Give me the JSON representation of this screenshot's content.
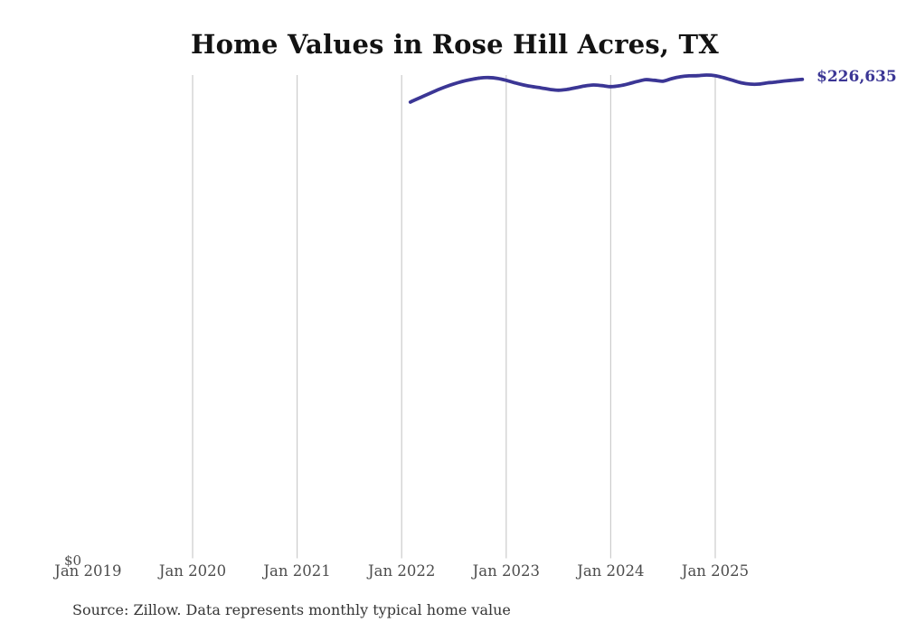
{
  "title": "Home Values in Rose Hill Acres, TX",
  "source_note": "Source: Zillow. Data represents monthly typical home value",
  "colors": {
    "line": "#3b3695",
    "end_label": "#3b3695",
    "gridline": "#cccccc",
    "axis_text": "#4d4d4d",
    "title_text": "#131313",
    "background": "#ffffff"
  },
  "chart_data": {
    "type": "line",
    "title": "Home Values in Rose Hill Acres, TX",
    "series_name": "Monthly typical home value",
    "xlabel": "",
    "ylabel": "",
    "legend_position": "none",
    "grid": "vertical-only",
    "ylim_dollars": [
      0,
      240000
    ],
    "end_label": "$226,635",
    "final_value": 226635,
    "y_axis": {
      "zero_label": "$0",
      "min": 0
    },
    "x_ticks": [
      {
        "label": "Jan 2019",
        "year": 2019,
        "gridline": false
      },
      {
        "label": "Jan 2020",
        "year": 2020,
        "gridline": true
      },
      {
        "label": "Jan 2021",
        "year": 2021,
        "gridline": true
      },
      {
        "label": "Jan 2022",
        "year": 2022,
        "gridline": true
      },
      {
        "label": "Jan 2023",
        "year": 2023,
        "gridline": true
      },
      {
        "label": "Jan 2024",
        "year": 2024,
        "gridline": true
      },
      {
        "label": "Jan 2025",
        "year": 2025,
        "gridline": true
      }
    ],
    "x": [
      "2022-02",
      "2022-03",
      "2022-04",
      "2022-05",
      "2022-06",
      "2022-07",
      "2022-08",
      "2022-09",
      "2022-10",
      "2022-11",
      "2022-12",
      "2023-01",
      "2023-02",
      "2023-03",
      "2023-04",
      "2023-05",
      "2023-06",
      "2023-07",
      "2023-08",
      "2023-09",
      "2023-10",
      "2023-11",
      "2023-12",
      "2024-01",
      "2024-02",
      "2024-03",
      "2024-04",
      "2024-05",
      "2024-06",
      "2024-07",
      "2024-08",
      "2024-09",
      "2024-10",
      "2024-11",
      "2024-12",
      "2025-01",
      "2025-02",
      "2025-03",
      "2025-04",
      "2025-05",
      "2025-06",
      "2025-07",
      "2025-08",
      "2025-09",
      "2025-10",
      "2025-11"
    ],
    "values": [
      215900,
      217800,
      219600,
      221400,
      223100,
      224500,
      225700,
      226600,
      227300,
      227500,
      227100,
      226200,
      225000,
      224000,
      223200,
      222600,
      221900,
      221500,
      221900,
      222700,
      223500,
      224000,
      223700,
      223200,
      223600,
      224500,
      225600,
      226500,
      226200,
      225800,
      227000,
      227900,
      228300,
      228400,
      228700,
      228400,
      227400,
      226200,
      225000,
      224400,
      224400,
      225000,
      225400,
      225900,
      226300,
      226635
    ]
  }
}
